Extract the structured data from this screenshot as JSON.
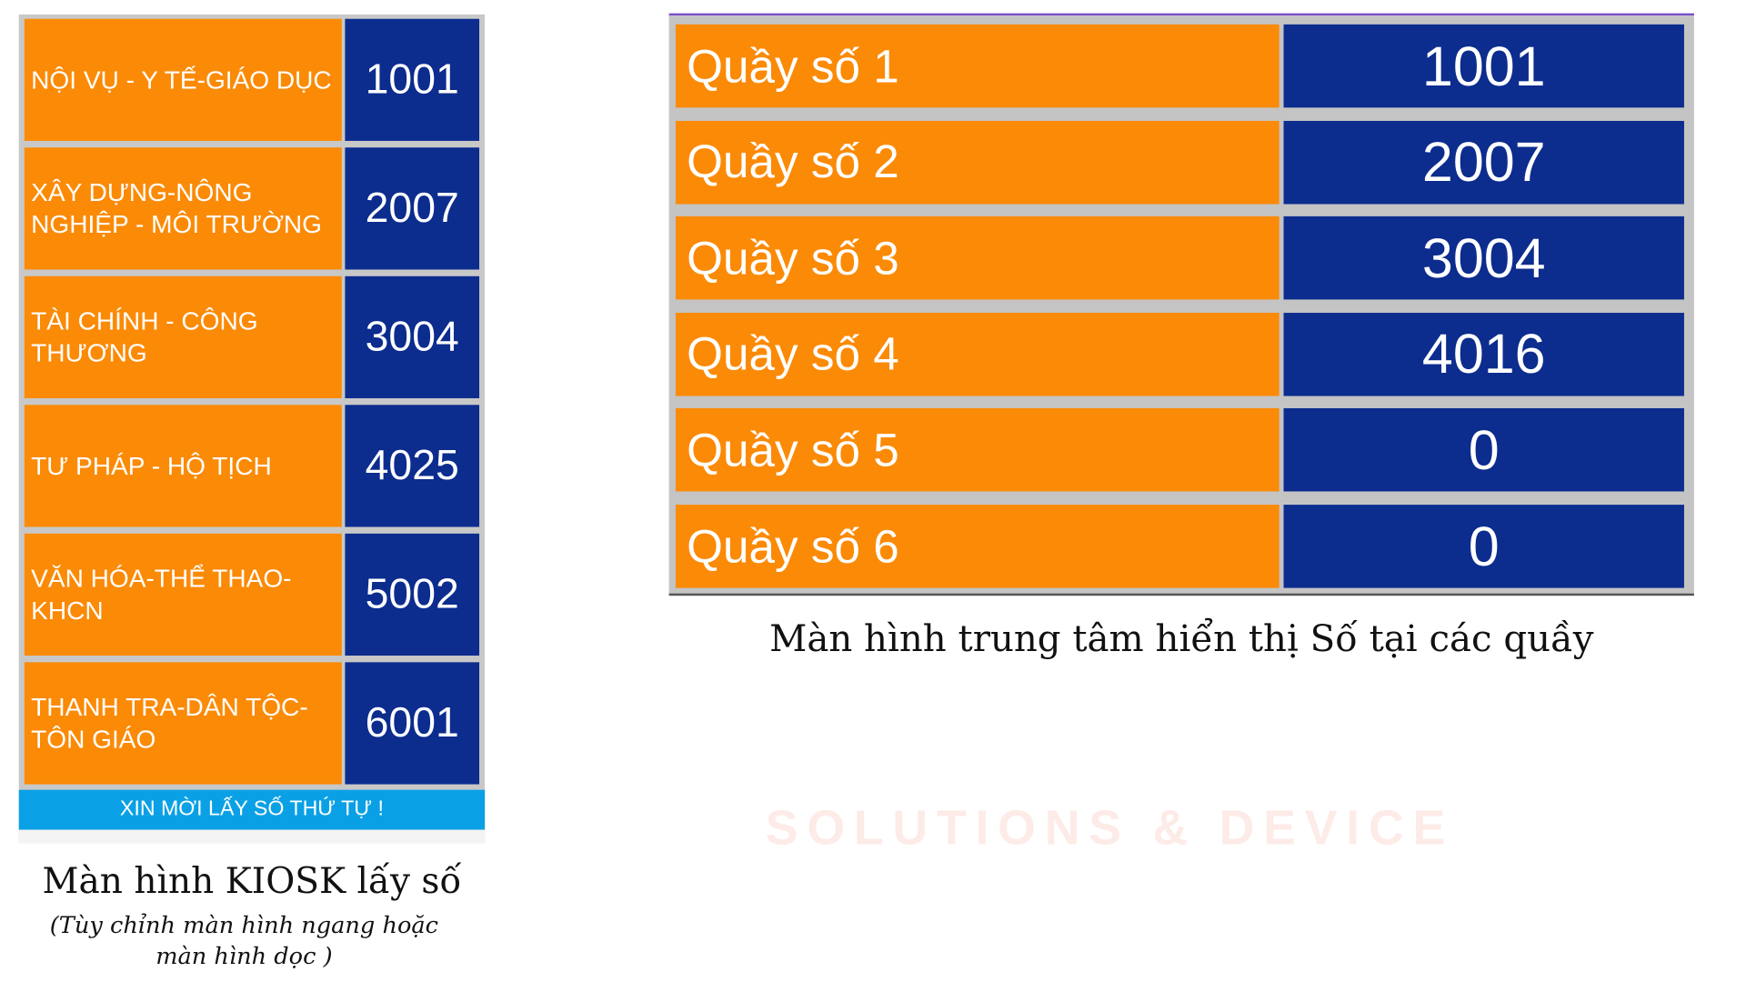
{
  "kiosk": {
    "services": [
      {
        "label": "NỘI VỤ - Y TẾ-GIÁO DỤC",
        "number": "1001"
      },
      {
        "label": "XÂY DỰNG-NÔNG NGHIỆP - MÔI TRƯỜNG",
        "number": "2007"
      },
      {
        "label": "TÀI CHÍNH - CÔNG THƯƠNG",
        "number": "3004"
      },
      {
        "label": "TƯ PHÁP - HỘ TỊCH",
        "number": "4025"
      },
      {
        "label": "VĂN HÓA-THỂ THAO-KHCN",
        "number": "5002"
      },
      {
        "label": "THANH TRA-DÂN TỘC-TÔN GIÁO",
        "number": "6001"
      }
    ],
    "button": "XIN MỜI LẤY SỐ THỨ TỰ !",
    "caption": "Màn hình KIOSK lấy số",
    "subcaption": "(Tùy chỉnh màn hình ngang hoặc màn hình dọc )"
  },
  "display": {
    "counters": [
      {
        "label": "Quầy số 1",
        "number": "1001"
      },
      {
        "label": "Quầy số 2",
        "number": "2007"
      },
      {
        "label": "Quầy số 3",
        "number": "3004"
      },
      {
        "label": "Quầy số 4",
        "number": "4016"
      },
      {
        "label": "Quầy số 5",
        "number": "0"
      },
      {
        "label": "Quầy số 6",
        "number": "0"
      }
    ],
    "caption": "Màn hình trung tâm hiển thị Số tại các quầy"
  },
  "watermark": "SOLUTIONS & DEVICE"
}
